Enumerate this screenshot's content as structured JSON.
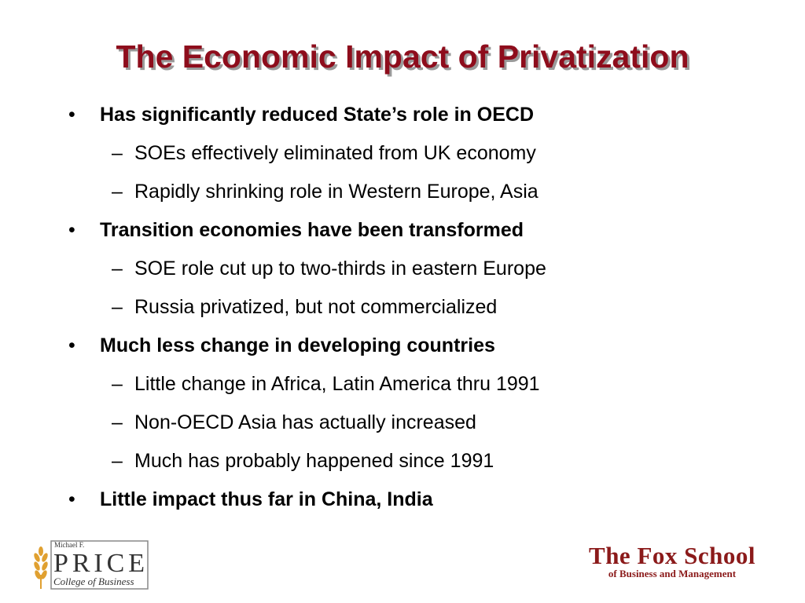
{
  "title": "The Economic Impact of Privatization",
  "bullets": [
    {
      "text": "Has significantly reduced State’s role in OECD",
      "subs": [
        "SOEs effectively eliminated from UK economy",
        "Rapidly shrinking role in Western Europe, Asia"
      ]
    },
    {
      "text": "Transition economies have been transformed",
      "subs": [
        "SOE role cut up to two-thirds in eastern Europe",
        "Russia privatized, but not commercialized"
      ]
    },
    {
      "text": "Much less change in developing countries",
      "subs": [
        "Little change in Africa, Latin America thru 1991",
        "Non-OECD Asia has actually increased",
        "Much has probably happened since 1991"
      ]
    },
    {
      "text": "Little impact thus far in China, India",
      "subs": []
    }
  ],
  "logos": {
    "price": {
      "small": "Michael F.",
      "name": "PRICE",
      "sub": "College of Business"
    },
    "fox": {
      "name": "The Fox School",
      "sub": "of Business and Management"
    }
  }
}
